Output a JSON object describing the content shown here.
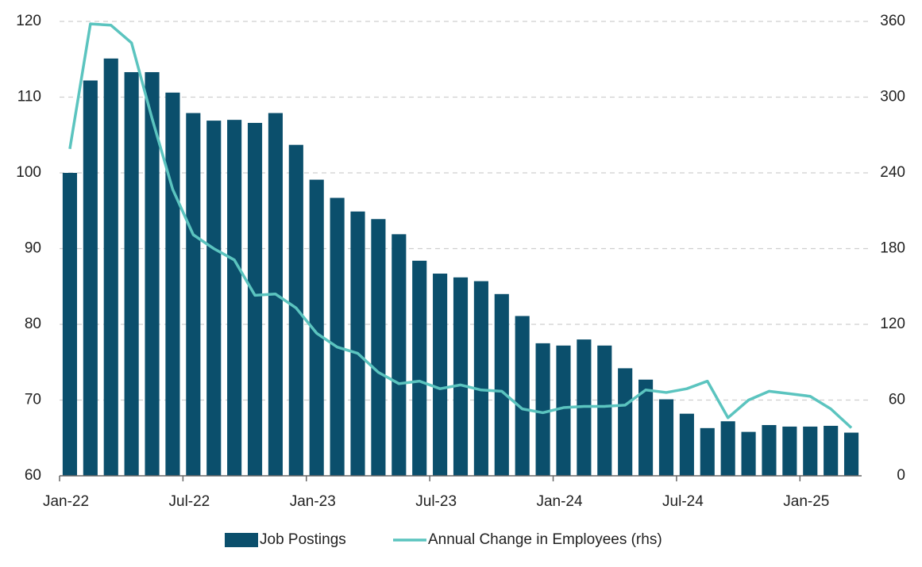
{
  "chart_data": {
    "type": "bar-line",
    "categories": [
      "Jan-22",
      null,
      null,
      null,
      null,
      null,
      "Jul-22",
      null,
      null,
      null,
      null,
      null,
      "Jan-23",
      null,
      null,
      null,
      null,
      null,
      "Jul-23",
      null,
      null,
      null,
      null,
      null,
      "Jan-24",
      null,
      null,
      null,
      null,
      null,
      "Jul-24",
      null,
      null,
      null,
      null,
      null,
      "Jan-25",
      null,
      null
    ],
    "series": [
      {
        "name": "Job Postings",
        "type": "bar",
        "color": "#0b4f6c",
        "values": [
          100,
          112.2,
          115.1,
          113.3,
          113.3,
          110.6,
          107.9,
          106.9,
          107.0,
          106.6,
          107.9,
          103.7,
          99.1,
          96.7,
          94.9,
          93.9,
          91.9,
          88.4,
          86.7,
          86.2,
          85.7,
          84.0,
          81.1,
          77.5,
          77.2,
          78.0,
          77.2,
          74.2,
          72.7,
          70.1,
          68.2,
          66.3,
          67.2,
          65.8,
          66.7,
          66.5,
          66.5,
          66.6,
          65.7
        ]
      },
      {
        "name": "Annual Change in Employees (rhs)",
        "type": "line",
        "axis": "y2",
        "color": "#5bc4bf",
        "values": [
          259,
          358,
          357,
          343,
          283,
          227,
          191,
          180,
          171,
          143,
          144,
          133,
          113,
          102,
          97,
          82,
          73,
          75,
          69,
          72,
          68,
          67,
          53,
          50,
          54,
          55,
          55,
          56,
          68,
          66,
          69,
          75,
          46,
          60,
          67,
          65,
          63,
          53,
          38
        ]
      }
    ],
    "ylim": [
      60,
      120
    ],
    "yticks": [
      60,
      70,
      80,
      90,
      100,
      110,
      120
    ],
    "y2lim": [
      0,
      360
    ],
    "y2ticks": [
      0,
      60,
      120,
      180,
      240,
      300,
      360
    ],
    "grid": true,
    "legend": "bottom"
  }
}
